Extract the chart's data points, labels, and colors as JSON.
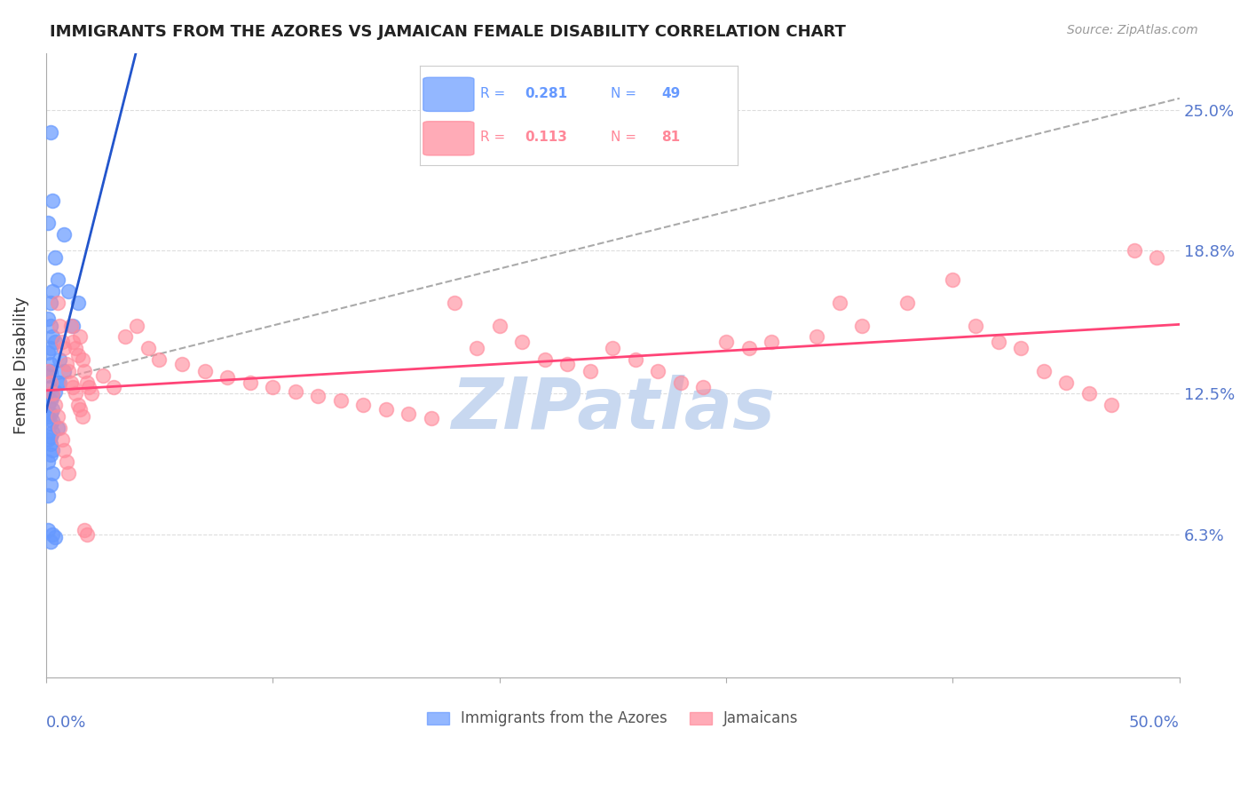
{
  "title": "IMMIGRANTS FROM THE AZORES VS JAMAICAN FEMALE DISABILITY CORRELATION CHART",
  "source": "Source: ZipAtlas.com",
  "ylabel": "Female Disability",
  "ytick_labels": [
    "25.0%",
    "18.8%",
    "12.5%",
    "6.3%"
  ],
  "ytick_values": [
    0.25,
    0.188,
    0.125,
    0.063
  ],
  "xlim": [
    0.0,
    0.5
  ],
  "ylim": [
    0.0,
    0.275
  ],
  "azores_color": "#6699ff",
  "jamaican_color": "#ff8899",
  "azores_line_color": "#2255cc",
  "jamaican_line_color": "#ff4477",
  "dashed_line_color": "#aaaaaa",
  "background_color": "#ffffff",
  "grid_color": "#dddddd",
  "axis_label_color": "#5577cc",
  "watermark_color": "#c8d8f0",
  "azores_x": [
    0.002,
    0.003,
    0.001,
    0.008,
    0.004,
    0.005,
    0.003,
    0.002,
    0.001,
    0.002,
    0.003,
    0.004,
    0.002,
    0.001,
    0.006,
    0.002,
    0.002,
    0.001,
    0.005,
    0.002,
    0.004,
    0.003,
    0.002,
    0.001,
    0.003,
    0.002,
    0.001,
    0.003,
    0.002,
    0.006,
    0.008,
    0.012,
    0.014,
    0.01,
    0.005,
    0.003,
    0.002,
    0.001,
    0.002,
    0.003,
    0.004,
    0.002,
    0.001,
    0.003,
    0.002,
    0.001,
    0.003,
    0.002,
    0.001
  ],
  "azores_y": [
    0.24,
    0.21,
    0.2,
    0.195,
    0.185,
    0.175,
    0.17,
    0.165,
    0.158,
    0.155,
    0.15,
    0.148,
    0.145,
    0.143,
    0.14,
    0.138,
    0.135,
    0.133,
    0.13,
    0.128,
    0.126,
    0.124,
    0.122,
    0.12,
    0.118,
    0.116,
    0.115,
    0.113,
    0.112,
    0.13,
    0.135,
    0.155,
    0.165,
    0.17,
    0.11,
    0.108,
    0.106,
    0.105,
    0.103,
    0.063,
    0.062,
    0.06,
    0.065,
    0.1,
    0.098,
    0.095,
    0.09,
    0.085,
    0.08
  ],
  "jamaican_x": [
    0.001,
    0.002,
    0.003,
    0.004,
    0.005,
    0.006,
    0.007,
    0.008,
    0.009,
    0.01,
    0.011,
    0.012,
    0.013,
    0.014,
    0.015,
    0.016,
    0.017,
    0.018,
    0.019,
    0.02,
    0.025,
    0.03,
    0.035,
    0.04,
    0.045,
    0.05,
    0.06,
    0.07,
    0.08,
    0.09,
    0.1,
    0.11,
    0.12,
    0.13,
    0.14,
    0.15,
    0.16,
    0.17,
    0.18,
    0.19,
    0.2,
    0.21,
    0.22,
    0.23,
    0.24,
    0.25,
    0.3,
    0.35,
    0.4,
    0.41,
    0.42,
    0.43,
    0.44,
    0.45,
    0.46,
    0.47,
    0.48,
    0.49,
    0.38,
    0.36,
    0.34,
    0.32,
    0.31,
    0.26,
    0.27,
    0.28,
    0.29,
    0.005,
    0.006,
    0.007,
    0.008,
    0.009,
    0.01,
    0.011,
    0.012,
    0.013,
    0.014,
    0.015,
    0.016,
    0.017,
    0.018
  ],
  "jamaican_y": [
    0.135,
    0.13,
    0.125,
    0.12,
    0.115,
    0.11,
    0.105,
    0.1,
    0.095,
    0.09,
    0.155,
    0.148,
    0.145,
    0.142,
    0.15,
    0.14,
    0.135,
    0.13,
    0.128,
    0.125,
    0.133,
    0.128,
    0.15,
    0.155,
    0.145,
    0.14,
    0.138,
    0.135,
    0.132,
    0.13,
    0.128,
    0.126,
    0.124,
    0.122,
    0.12,
    0.118,
    0.116,
    0.114,
    0.165,
    0.145,
    0.155,
    0.148,
    0.14,
    0.138,
    0.135,
    0.145,
    0.148,
    0.165,
    0.175,
    0.155,
    0.148,
    0.145,
    0.135,
    0.13,
    0.125,
    0.12,
    0.188,
    0.185,
    0.165,
    0.155,
    0.15,
    0.148,
    0.145,
    0.14,
    0.135,
    0.13,
    0.128,
    0.165,
    0.155,
    0.148,
    0.145,
    0.138,
    0.135,
    0.13,
    0.128,
    0.125,
    0.12,
    0.118,
    0.115,
    0.065,
    0.063
  ]
}
